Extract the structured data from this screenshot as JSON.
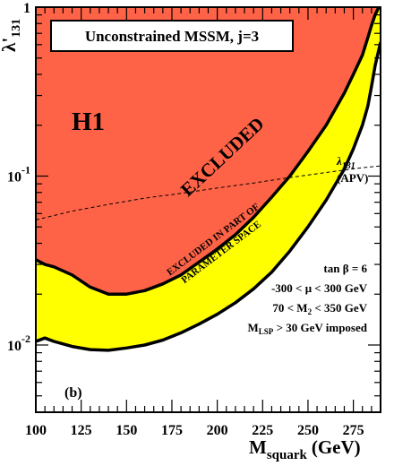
{
  "chart_data": {
    "type": "area",
    "title": "Unconstrained MSSM, j=3",
    "panel_label": "(b)",
    "xlabel": {
      "main": "M",
      "sub": "squark",
      "unit": "(GeV)"
    },
    "ylabel": {
      "main": "λ'",
      "sub": "131"
    },
    "x_ticks": [
      "100",
      "125",
      "150",
      "175",
      "200",
      "225",
      "250",
      "275"
    ],
    "y_ticks": [
      {
        "base": "10",
        "exp": "-2"
      },
      {
        "base": "10",
        "exp": "-1"
      },
      {
        "base": "1",
        "exp": ""
      }
    ],
    "xlim": [
      100,
      290
    ],
    "ylim": [
      0.004,
      1.0
    ],
    "yscale": "log",
    "grid": false,
    "series": [
      {
        "name": "EXCLUDED",
        "color": "#ff6347",
        "x": [
          100,
          105,
          110,
          120,
          130,
          140,
          150,
          160,
          170,
          180,
          190,
          200,
          210,
          220,
          230,
          240,
          250,
          260,
          270,
          275,
          280,
          283,
          285,
          287,
          289,
          290
        ],
        "y": [
          0.032,
          0.03,
          0.029,
          0.026,
          0.022,
          0.02,
          0.02,
          0.021,
          0.023,
          0.026,
          0.031,
          0.037,
          0.045,
          0.057,
          0.075,
          0.1,
          0.14,
          0.2,
          0.31,
          0.4,
          0.52,
          0.66,
          0.78,
          0.9,
          1.0,
          1.0
        ]
      },
      {
        "name": "EXCLUDED IN PART OF PARAMETER SPACE",
        "color": "#ffff00",
        "x": [
          100,
          105,
          110,
          120,
          130,
          140,
          150,
          160,
          170,
          180,
          190,
          200,
          210,
          220,
          230,
          240,
          250,
          260,
          270,
          275,
          280,
          283,
          285,
          287,
          290
        ],
        "y": [
          0.0105,
          0.011,
          0.0105,
          0.0098,
          0.0094,
          0.0093,
          0.0096,
          0.01,
          0.0107,
          0.0118,
          0.0133,
          0.0152,
          0.0178,
          0.0215,
          0.027,
          0.036,
          0.05,
          0.072,
          0.11,
          0.145,
          0.2,
          0.26,
          0.34,
          0.45,
          0.62
        ]
      },
      {
        "name": "λ'131 (APV)",
        "style": "dashed",
        "x": [
          100,
          120,
          140,
          160,
          180,
          200,
          220,
          240,
          260,
          280,
          290
        ],
        "y": [
          0.055,
          0.062,
          0.068,
          0.074,
          0.079,
          0.085,
          0.091,
          0.098,
          0.105,
          0.112,
          0.115
        ]
      }
    ],
    "annotations": {
      "h1": "H1",
      "excluded": "EXCLUDED",
      "partial_line1": "EXCLUDED IN PART OF",
      "partial_line2": "PARAMETER SPACE",
      "apv_lambda": "λ",
      "apv_sub": "131",
      "apv_paren": "(APV)",
      "param1": "tan β = 6",
      "param2": "-300 < μ < 300 GeV",
      "param3_a": "70 < M",
      "param3_sub": "2",
      "param3_b": " < 350 GeV",
      "param4_a": "M",
      "param4_sub": "LSP",
      "param4_b": " > 30 GeV imposed"
    },
    "colors": {
      "excluded": "#ff6347",
      "partial": "#ffff00",
      "frame": "#000000"
    }
  }
}
